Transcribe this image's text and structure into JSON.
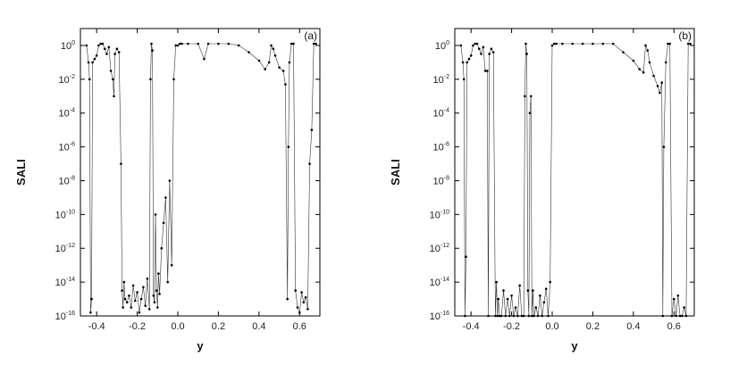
{
  "chart_data": [
    {
      "type": "scatter",
      "panel_label": "(a)",
      "xlabel": "y",
      "ylabel": "SALI",
      "xlim": [
        -0.48,
        0.7
      ],
      "ylim_log10": [
        -16,
        1
      ],
      "y_scale": "log",
      "x_ticks": [
        -0.4,
        -0.2,
        0.0,
        0.2,
        0.4,
        0.6
      ],
      "x_tick_labels": [
        "-0.4",
        "-0.2",
        "0.0",
        "0.2",
        "0.4",
        "0.6"
      ],
      "y_ticks_log10": [
        0,
        -2,
        -4,
        -6,
        -8,
        -10,
        -12,
        -14,
        -16
      ],
      "y_tick_bases": [
        "10",
        "10",
        "10",
        "10",
        "10",
        "10",
        "10",
        "10",
        "10"
      ],
      "y_tick_exponents": [
        "0",
        "-2",
        "-4",
        "-6",
        "-8",
        "-10",
        "-12",
        "-14",
        "-16"
      ],
      "grid": false,
      "series": [
        {
          "x": [
            -0.45,
            -0.44,
            -0.435,
            -0.43,
            -0.425,
            -0.42,
            -0.41,
            -0.4,
            -0.39,
            -0.38,
            -0.37,
            -0.36,
            -0.35,
            -0.34,
            -0.33,
            -0.32,
            -0.315,
            -0.31,
            -0.3,
            -0.29,
            -0.28,
            -0.275,
            -0.27,
            -0.265,
            -0.26,
            -0.25,
            -0.24,
            -0.23,
            -0.22,
            -0.21,
            -0.2,
            -0.19,
            -0.18,
            -0.17,
            -0.16,
            -0.15,
            -0.14,
            -0.135,
            -0.13,
            -0.125,
            -0.12,
            -0.115,
            -0.11,
            -0.105,
            -0.1,
            -0.095,
            -0.09,
            -0.08,
            -0.07,
            -0.06,
            -0.05,
            -0.04,
            -0.03,
            -0.02,
            -0.01,
            0.0,
            0.01,
            0.02,
            0.05,
            0.1,
            0.13,
            0.15,
            0.2,
            0.25,
            0.3,
            0.35,
            0.4,
            0.43,
            0.45,
            0.46,
            0.47,
            0.48,
            0.5,
            0.52,
            0.53,
            0.54,
            0.545,
            0.55,
            0.56,
            0.57,
            0.58,
            0.59,
            0.6,
            0.61,
            0.62,
            0.63,
            0.64,
            0.65,
            0.66,
            0.67,
            0.68
          ],
          "y_log10": [
            0,
            -1,
            -2,
            -15.8,
            -15,
            -1,
            -0.8,
            -0.6,
            0,
            0.1,
            0.1,
            -0.2,
            -0.5,
            -0.1,
            -1.5,
            -2,
            -3,
            -0.5,
            -0.2,
            -0.4,
            -7,
            -14.5,
            -15.5,
            -14,
            -15,
            -15.2,
            -14.8,
            -15.5,
            -14.2,
            -15.1,
            -14.6,
            -15.8,
            -15,
            -14.3,
            -15.4,
            -13.8,
            -15.6,
            -2,
            0.1,
            -0.3,
            -14.8,
            -15.2,
            -10,
            -14.5,
            -15.5,
            -13.5,
            -14.7,
            -12,
            -10.5,
            -9,
            -14,
            -8,
            -13,
            -2,
            0,
            0,
            0.1,
            0.1,
            0.1,
            0.1,
            -0.8,
            0.1,
            0.1,
            0.1,
            0,
            -0.4,
            -0.9,
            -1.4,
            -1.0,
            0,
            -0.2,
            -0.6,
            -1.3,
            -1.5,
            -2.3,
            -15,
            -6,
            -1,
            0.1,
            0.1,
            -14.5,
            -15.5,
            -15.8,
            -14.6,
            -15.2,
            -14.9,
            -15.6,
            -7,
            -5,
            0.1,
            0.1
          ]
        }
      ]
    },
    {
      "type": "scatter",
      "panel_label": "(b)",
      "xlabel": "y",
      "ylabel": "SALI",
      "xlim": [
        -0.48,
        0.7
      ],
      "ylim_log10": [
        -16,
        1
      ],
      "y_scale": "log",
      "x_ticks": [
        -0.4,
        -0.2,
        0.0,
        0.2,
        0.4,
        0.6
      ],
      "x_tick_labels": [
        "-0.4",
        "-0.2",
        "0.0",
        "0.2",
        "0.4",
        "0.6"
      ],
      "y_ticks_log10": [
        0,
        -2,
        -4,
        -6,
        -8,
        -10,
        -12,
        -14,
        -16
      ],
      "y_tick_bases": [
        "10",
        "10",
        "10",
        "10",
        "10",
        "10",
        "10",
        "10",
        "10"
      ],
      "y_tick_exponents": [
        "0",
        "-2",
        "-4",
        "-6",
        "-8",
        "-10",
        "-12",
        "-14",
        "-16"
      ],
      "grid": false,
      "series": [
        {
          "x": [
            -0.45,
            -0.44,
            -0.435,
            -0.43,
            -0.425,
            -0.42,
            -0.41,
            -0.4,
            -0.39,
            -0.38,
            -0.37,
            -0.36,
            -0.35,
            -0.34,
            -0.33,
            -0.32,
            -0.315,
            -0.31,
            -0.3,
            -0.29,
            -0.28,
            -0.275,
            -0.27,
            -0.265,
            -0.26,
            -0.25,
            -0.24,
            -0.23,
            -0.22,
            -0.21,
            -0.2,
            -0.19,
            -0.18,
            -0.17,
            -0.16,
            -0.15,
            -0.14,
            -0.135,
            -0.13,
            -0.125,
            -0.12,
            -0.115,
            -0.11,
            -0.105,
            -0.1,
            -0.095,
            -0.09,
            -0.08,
            -0.07,
            -0.06,
            -0.05,
            -0.04,
            -0.03,
            -0.02,
            -0.01,
            0.0,
            0.01,
            0.02,
            0.05,
            0.1,
            0.15,
            0.2,
            0.25,
            0.3,
            0.35,
            0.4,
            0.43,
            0.45,
            0.46,
            0.47,
            0.48,
            0.5,
            0.52,
            0.53,
            0.54,
            0.545,
            0.55,
            0.56,
            0.57,
            0.58,
            0.59,
            0.6,
            0.61,
            0.62,
            0.63,
            0.64,
            0.65,
            0.66,
            0.67,
            0.68
          ],
          "y_log10": [
            0,
            -1,
            -2,
            -16,
            -12.5,
            -1,
            -0.8,
            -0.6,
            0,
            0.1,
            0.1,
            -0.2,
            -0.5,
            -0.1,
            -1.5,
            -1.5,
            -16,
            -0.5,
            -0.2,
            -0.4,
            -16,
            -14,
            -16,
            -15,
            -16,
            -16,
            -14.5,
            -16,
            -15,
            -16,
            -14.8,
            -16,
            -15.5,
            -16,
            -14.2,
            -16,
            -16,
            -3,
            0.1,
            -0.5,
            -14.5,
            -16,
            -4,
            -3,
            -16,
            -14.5,
            -16,
            -15.5,
            -16,
            -14.8,
            -16,
            -15.2,
            -14.4,
            -16,
            -14,
            0,
            0.1,
            0.1,
            0.1,
            0.1,
            0.1,
            0.1,
            0.1,
            0.1,
            -0.4,
            -0.9,
            -1.4,
            -1.6,
            0,
            -0.3,
            -1,
            -1.8,
            -2.4,
            -2.8,
            -2.2,
            -16,
            -6,
            -1,
            0.1,
            0.1,
            -16,
            -15,
            -16,
            -14.8,
            -16,
            -16,
            -15.5,
            -16,
            0.1,
            0.1
          ]
        }
      ]
    }
  ]
}
